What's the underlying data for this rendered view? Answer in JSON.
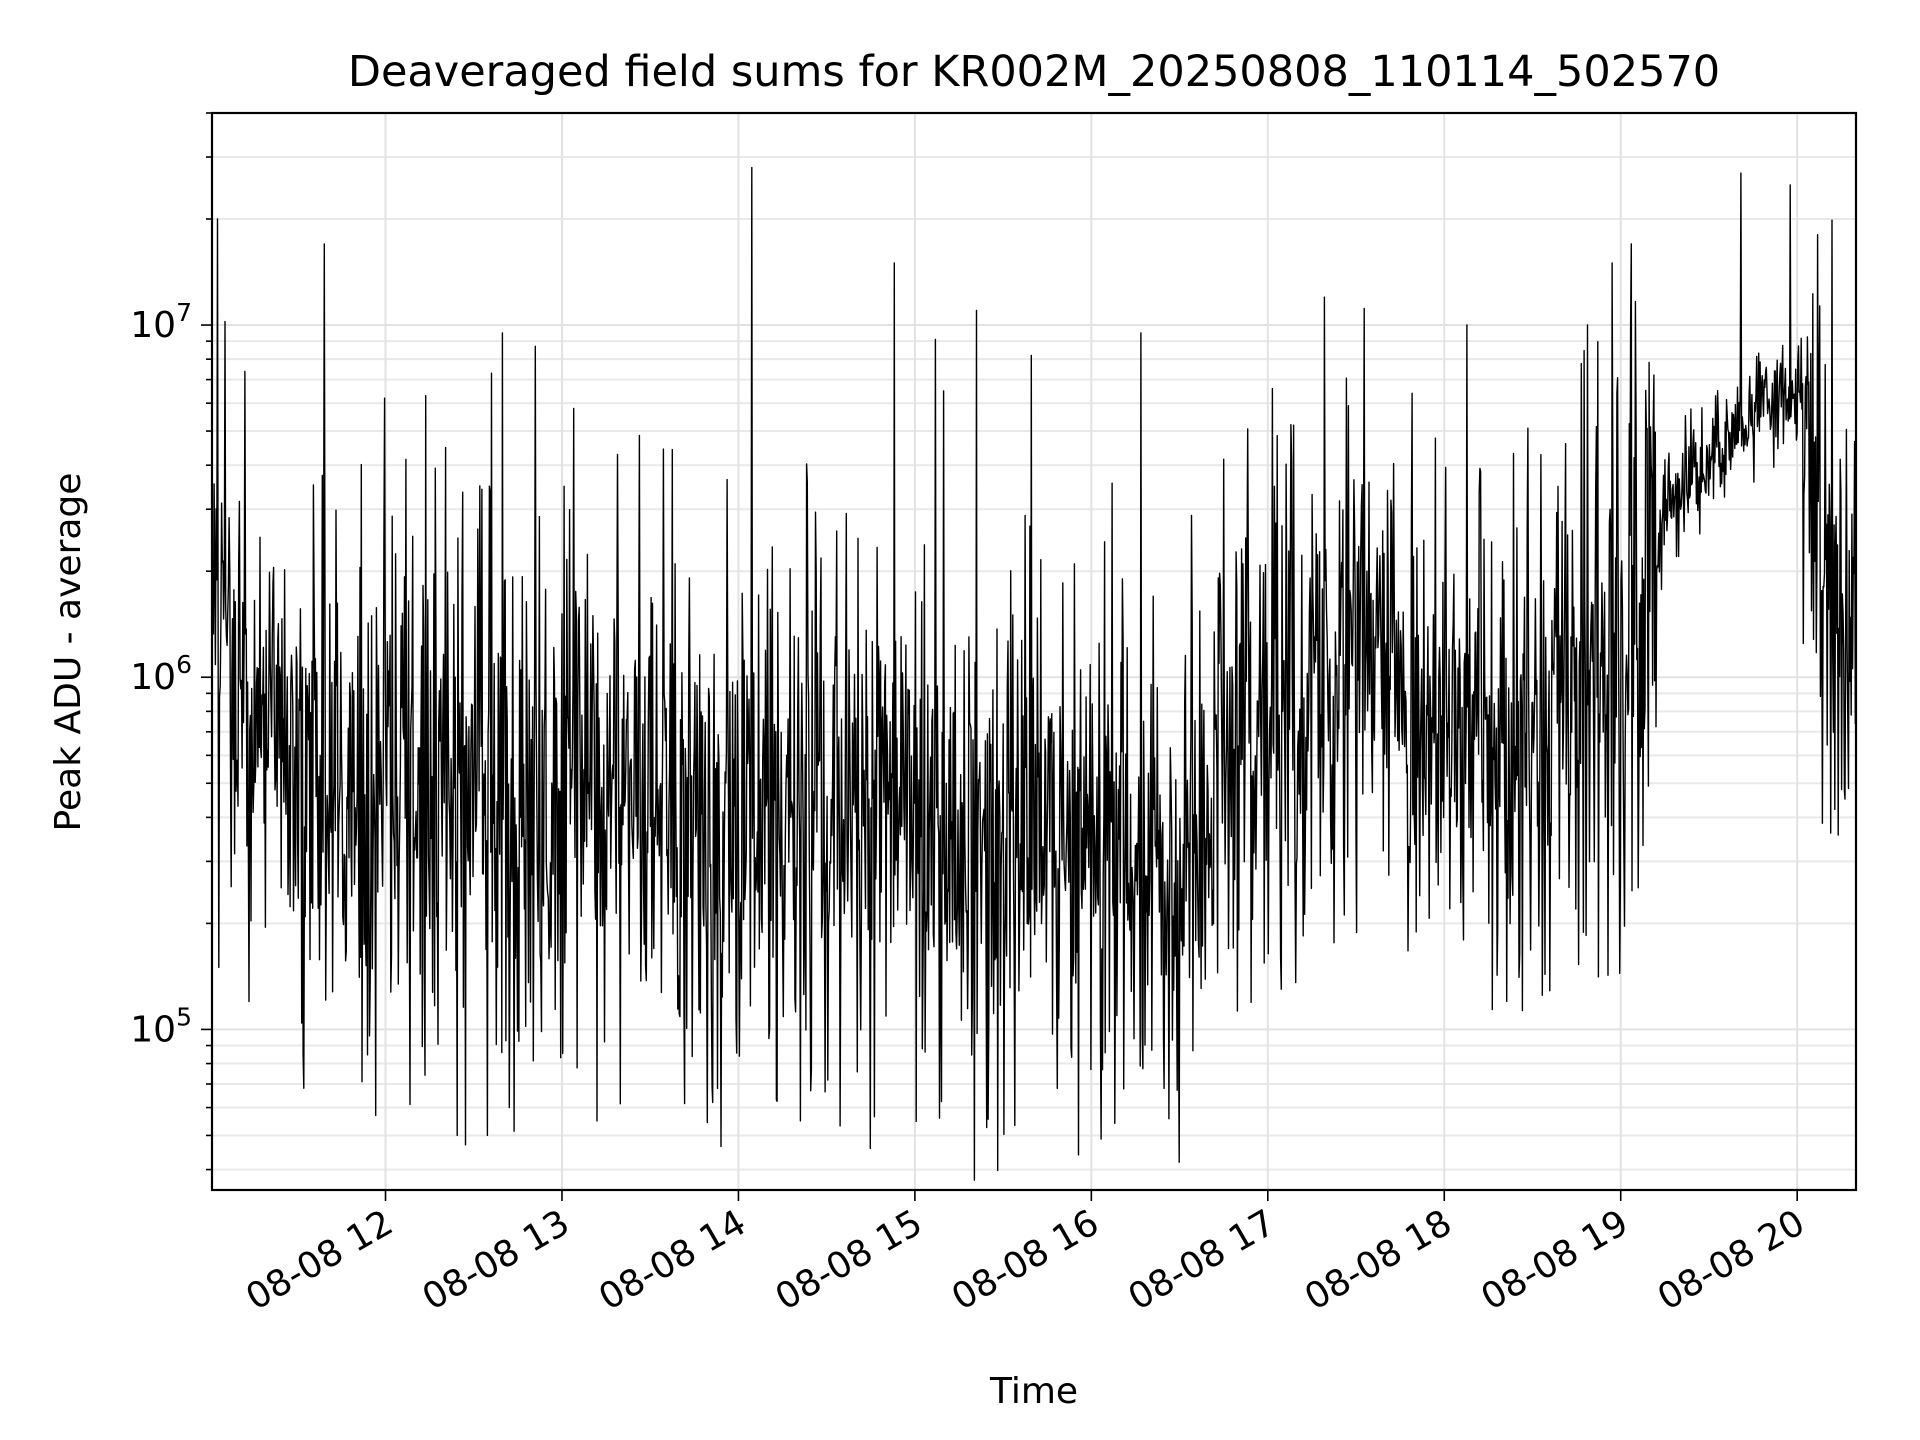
{
  "chart_data": {
    "type": "line",
    "title": "Deaveraged field sums for KR002M_20250808_110114_502570",
    "xlabel": "Time",
    "ylabel": "Peak ADU - average",
    "yscale": "log",
    "xlim": [
      "2025-08-08 11:01",
      "2025-08-08 20:20"
    ],
    "ylim": [
      35000,
      40000000
    ],
    "grid": true,
    "line_color": "#000000",
    "x_ticks": [
      "08-08 12",
      "08-08 13",
      "08-08 14",
      "08-08 15",
      "08-08 16",
      "08-08 17",
      "08-08 18",
      "08-08 19",
      "08-08 20"
    ],
    "y_ticks": [
      {
        "base": "10",
        "exp": "5",
        "value": 100000
      },
      {
        "base": "10",
        "exp": "6",
        "value": 1000000
      },
      {
        "base": "10",
        "exp": "7",
        "value": 10000000
      }
    ],
    "series": [
      {
        "points": [
          [
            "2025-08-08 11:01",
            900000
          ],
          [
            "2025-08-08 11:06",
            1300000
          ],
          [
            "2025-08-08 11:10",
            800000
          ],
          [
            "2025-08-08 11:15",
            1000000
          ],
          [
            "2025-08-08 11:20",
            650000
          ],
          [
            "2025-08-08 11:30",
            550000
          ],
          [
            "2025-08-08 11:45",
            450000
          ],
          [
            "2025-08-08 12:00",
            480000
          ],
          [
            "2025-08-08 12:15",
            470000
          ],
          [
            "2025-08-08 12:30",
            450000
          ],
          [
            "2025-08-08 12:45",
            440000
          ],
          [
            "2025-08-08 13:00",
            450000
          ],
          [
            "2025-08-08 13:15",
            480000
          ],
          [
            "2025-08-08 13:30",
            500000
          ],
          [
            "2025-08-08 13:45",
            420000
          ],
          [
            "2025-08-08 14:00",
            380000
          ],
          [
            "2025-08-08 14:15",
            420000
          ],
          [
            "2025-08-08 14:30",
            430000
          ],
          [
            "2025-08-08 14:45",
            400000
          ],
          [
            "2025-08-08 15:00",
            370000
          ],
          [
            "2025-08-08 15:15",
            340000
          ],
          [
            "2025-08-08 15:30",
            300000
          ],
          [
            "2025-08-08 15:45",
            320000
          ],
          [
            "2025-08-08 16:00",
            380000
          ],
          [
            "2025-08-08 16:15",
            350000
          ],
          [
            "2025-08-08 16:30",
            300000
          ],
          [
            "2025-08-08 16:40",
            330000
          ],
          [
            "2025-08-08 16:45",
            600000
          ],
          [
            "2025-08-08 17:00",
            750000
          ],
          [
            "2025-08-08 17:15",
            850000
          ],
          [
            "2025-08-08 17:30",
            1200000
          ],
          [
            "2025-08-08 17:40",
            1250000
          ],
          [
            "2025-08-08 17:45",
            750000
          ],
          [
            "2025-08-08 18:00",
            650000
          ],
          [
            "2025-08-08 18:15",
            700000
          ],
          [
            "2025-08-08 18:30",
            620000
          ],
          [
            "2025-08-08 18:40",
            800000
          ],
          [
            "2025-08-08 18:50",
            1100000
          ],
          [
            "2025-08-08 19:00",
            900000
          ],
          [
            "2025-08-08 19:07",
            1300000
          ],
          [
            "2025-08-08 19:15",
            3000000
          ],
          [
            "2025-08-08 19:30",
            4200000
          ],
          [
            "2025-08-08 19:45",
            5500000
          ],
          [
            "2025-08-08 19:55",
            6500000
          ],
          [
            "2025-08-08 20:00",
            6500000
          ],
          [
            "2025-08-08 20:05",
            4500000
          ],
          [
            "2025-08-08 20:10",
            2500000
          ],
          [
            "2025-08-08 20:15",
            1500000
          ],
          [
            "2025-08-08 20:20",
            1200000
          ]
        ],
        "spikes": [
          [
            "2025-08-08 11:03",
            20000000
          ],
          [
            "2025-08-08 11:39",
            17000000
          ],
          [
            "2025-08-08 12:00",
            6200000
          ],
          [
            "2025-08-08 12:14",
            6300000
          ],
          [
            "2025-08-08 12:36",
            7300000
          ],
          [
            "2025-08-08 12:40",
            9500000
          ],
          [
            "2025-08-08 12:51",
            8700000
          ],
          [
            "2025-08-08 13:04",
            5800000
          ],
          [
            "2025-08-08 14:05",
            28000000
          ],
          [
            "2025-08-08 14:53",
            15000000
          ],
          [
            "2025-08-08 15:07",
            9100000
          ],
          [
            "2025-08-08 15:10",
            6500000
          ],
          [
            "2025-08-08 15:21",
            11000000
          ],
          [
            "2025-08-08 15:40",
            8200000
          ],
          [
            "2025-08-08 16:17",
            9500000
          ],
          [
            "2025-08-08 17:02",
            6600000
          ],
          [
            "2025-08-08 17:19",
            12000000
          ],
          [
            "2025-08-08 17:49",
            6400000
          ],
          [
            "2025-08-08 18:08",
            10000000
          ],
          [
            "2025-08-08 18:49",
            10000000
          ],
          [
            "2025-08-08 18:57",
            15000000
          ],
          [
            "2025-08-08 19:04",
            17000000
          ],
          [
            "2025-08-08 19:41",
            27000000
          ],
          [
            "2025-08-08 19:58",
            25000000
          ]
        ],
        "dips": [
          [
            "2025-08-08 11:03",
            150000
          ],
          [
            "2025-08-08 11:14",
            120000
          ],
          [
            "2025-08-08 12:24",
            50000
          ],
          [
            "2025-08-08 12:27",
            47000
          ],
          [
            "2025-08-08 12:35",
            50000
          ],
          [
            "2025-08-08 12:42",
            60000
          ],
          [
            "2025-08-08 13:12",
            55000
          ],
          [
            "2025-08-08 13:53",
            68000
          ],
          [
            "2025-08-08 14:25",
            67000
          ],
          [
            "2025-08-08 15:48",
            68000
          ],
          [
            "2025-08-08 16:25",
            68000
          ],
          [
            "2025-08-08 18:33",
            125000
          ]
        ]
      }
    ]
  }
}
